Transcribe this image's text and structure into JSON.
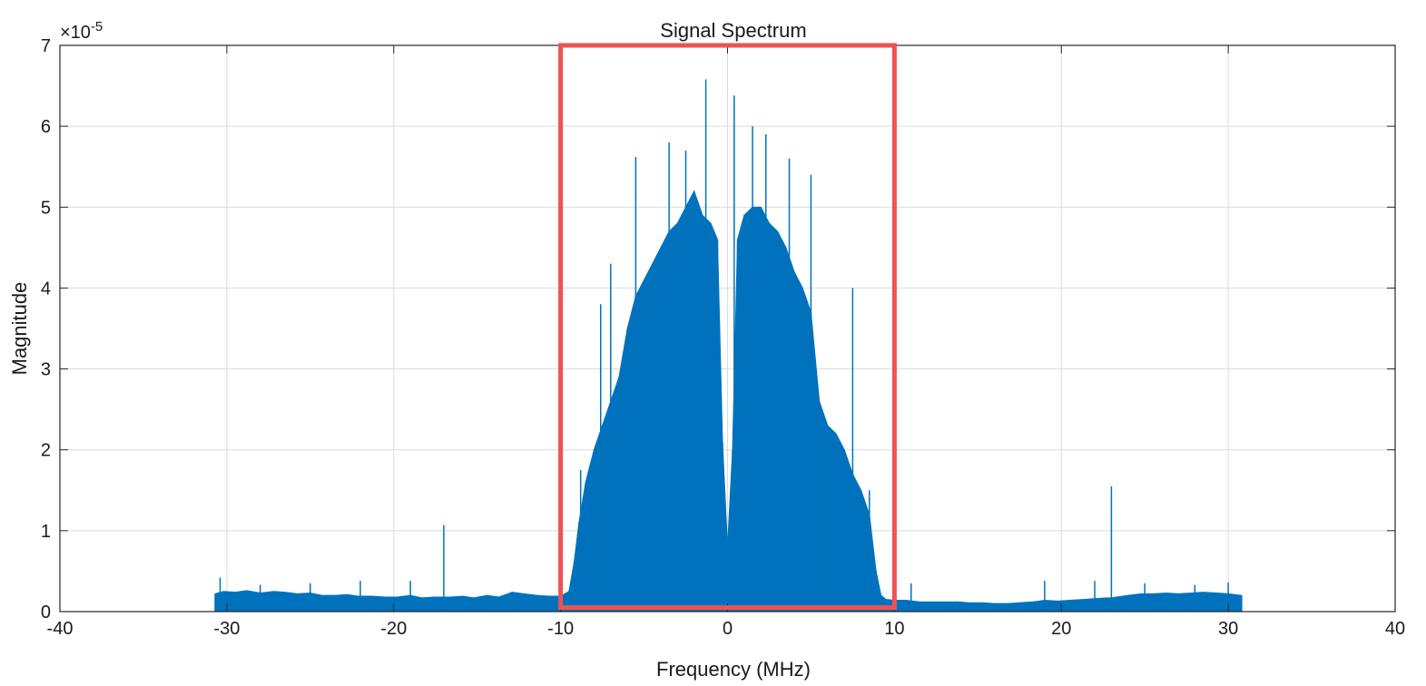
{
  "chart_data": {
    "type": "area",
    "title": "Signal Spectrum",
    "xlabel": "Frequency (MHz)",
    "ylabel": "Magnitude",
    "exponent_label": "×10",
    "exponent_power": "-5",
    "xlim": [
      -40,
      40
    ],
    "ylim": [
      0,
      7
    ],
    "xticks": [
      -40,
      -30,
      -20,
      -10,
      0,
      10,
      20,
      30,
      40
    ],
    "yticks": [
      0,
      1,
      2,
      3,
      4,
      5,
      6,
      7
    ],
    "xtick_labels": [
      "-40",
      "-30",
      "-20",
      "-10",
      "0",
      "10",
      "20",
      "30",
      "40"
    ],
    "ytick_labels": [
      "0",
      "1",
      "2",
      "3",
      "4",
      "5",
      "6",
      "7"
    ],
    "grid": true,
    "series": [
      {
        "color": "#0072BD",
        "x": [
          -30.7,
          -30.2,
          -29.5,
          -28.8,
          -28.0,
          -27.2,
          -26.5,
          -25.8,
          -25.0,
          -24.3,
          -23.5,
          -22.8,
          -22.1,
          -21.3,
          -20.5,
          -19.8,
          -19.0,
          -18.3,
          -17.6,
          -17.0,
          -16.6,
          -15.9,
          -15.2,
          -14.4,
          -13.7,
          -12.9,
          -12.2,
          -11.4,
          -10.7,
          -10.0,
          -9.5,
          -9.2,
          -8.9,
          -8.5,
          -8.0,
          -7.5,
          -7.0,
          -6.5,
          -6.0,
          -5.5,
          -5.0,
          -4.5,
          -4.0,
          -3.5,
          -3.0,
          -2.5,
          -2.0,
          -1.5,
          -1.0,
          -0.6,
          -0.3,
          0.0,
          0.3,
          0.6,
          1.0,
          1.5,
          2.0,
          2.5,
          3.0,
          3.5,
          4.0,
          4.5,
          5.0,
          5.5,
          6.0,
          6.5,
          7.0,
          7.5,
          8.0,
          8.5,
          8.9,
          9.2,
          9.5,
          10.0,
          10.7,
          11.5,
          12.3,
          13.0,
          13.8,
          14.5,
          15.3,
          16.0,
          16.8,
          17.5,
          18.3,
          19.0,
          19.8,
          20.5,
          21.3,
          22.0,
          22.7,
          23.0,
          23.3,
          24.0,
          24.8,
          25.5,
          26.3,
          27.0,
          27.8,
          28.5,
          29.3,
          30.0,
          30.8
        ],
        "y": [
          0.22,
          0.25,
          0.24,
          0.26,
          0.23,
          0.25,
          0.24,
          0.22,
          0.23,
          0.2,
          0.2,
          0.21,
          0.19,
          0.19,
          0.18,
          0.18,
          0.2,
          0.17,
          0.18,
          0.18,
          0.18,
          0.19,
          0.17,
          0.2,
          0.18,
          0.24,
          0.22,
          0.2,
          0.19,
          0.19,
          0.25,
          0.6,
          1.1,
          1.6,
          2.0,
          2.3,
          2.6,
          2.9,
          3.5,
          3.9,
          4.1,
          4.3,
          4.5,
          4.7,
          4.8,
          5.0,
          5.2,
          4.9,
          4.8,
          4.6,
          2.1,
          0.8,
          2.0,
          4.6,
          4.9,
          5.0,
          5.0,
          4.8,
          4.7,
          4.5,
          4.2,
          4.0,
          3.7,
          2.6,
          2.3,
          2.2,
          2.0,
          1.7,
          1.5,
          1.2,
          0.5,
          0.2,
          0.15,
          0.14,
          0.14,
          0.12,
          0.12,
          0.12,
          0.12,
          0.11,
          0.11,
          0.1,
          0.1,
          0.11,
          0.12,
          0.14,
          0.13,
          0.14,
          0.15,
          0.16,
          0.17,
          0.17,
          0.18,
          0.2,
          0.22,
          0.22,
          0.23,
          0.22,
          0.23,
          0.24,
          0.23,
          0.22,
          0.2
        ]
      }
    ],
    "spikes": [
      {
        "x": -30.4,
        "y": 0.42
      },
      {
        "x": -28.0,
        "y": 0.33
      },
      {
        "x": -25.0,
        "y": 0.35
      },
      {
        "x": -22.0,
        "y": 0.38
      },
      {
        "x": -19.0,
        "y": 0.38
      },
      {
        "x": -17.0,
        "y": 1.07
      },
      {
        "x": -8.8,
        "y": 1.75
      },
      {
        "x": -7.6,
        "y": 3.8
      },
      {
        "x": -7.0,
        "y": 4.3
      },
      {
        "x": -5.5,
        "y": 5.62
      },
      {
        "x": -3.5,
        "y": 5.8
      },
      {
        "x": -2.5,
        "y": 5.7
      },
      {
        "x": -1.3,
        "y": 6.58
      },
      {
        "x": 0.4,
        "y": 6.38
      },
      {
        "x": 1.5,
        "y": 6.0
      },
      {
        "x": 2.3,
        "y": 5.9
      },
      {
        "x": 3.7,
        "y": 5.6
      },
      {
        "x": 5.0,
        "y": 5.4
      },
      {
        "x": 7.5,
        "y": 4.0
      },
      {
        "x": 8.5,
        "y": 1.5
      },
      {
        "x": 11.0,
        "y": 0.35
      },
      {
        "x": 19.0,
        "y": 0.38
      },
      {
        "x": 22.0,
        "y": 0.38
      },
      {
        "x": 23.0,
        "y": 1.55
      },
      {
        "x": 25.0,
        "y": 0.35
      },
      {
        "x": 28.0,
        "y": 0.33
      },
      {
        "x": 30.0,
        "y": 0.36
      }
    ],
    "annotations": [
      {
        "type": "rectangle",
        "x": [
          -10,
          10
        ],
        "y": [
          0.05,
          7
        ],
        "color": "#EE5253"
      }
    ]
  }
}
